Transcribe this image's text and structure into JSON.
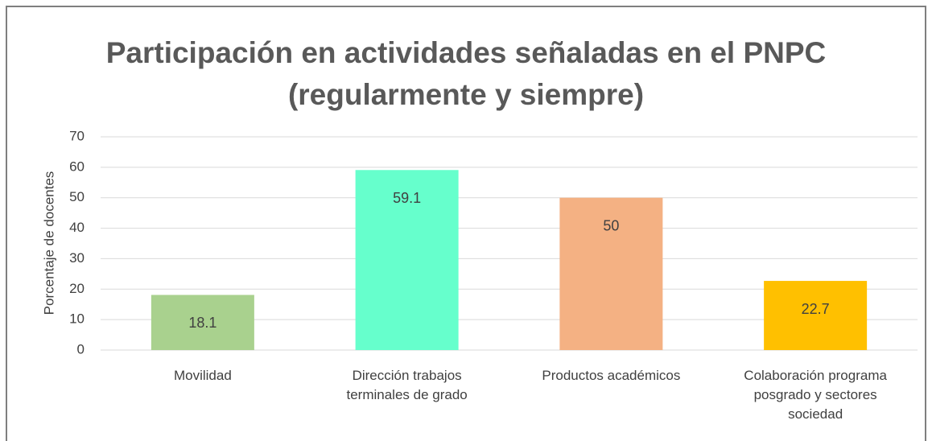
{
  "chart_data": {
    "type": "bar",
    "title": "Participación en actividades señaladas en el PNPC\n(regularmente y siempre)",
    "y_label": "Porcentaje de docentes",
    "categories": [
      "Movilidad",
      "Dirección trabajos\nterminales de grado",
      "Productos académicos",
      "Colaboración programa\nposgrado y sectores\nsociedad"
    ],
    "values": [
      18.1,
      59.1,
      50,
      22.7
    ],
    "colors": [
      "#a9d18e",
      "#66ffcc",
      "#f4b183",
      "#ffc000"
    ],
    "ylim": [
      0,
      70
    ],
    "yticks": [
      0,
      10,
      20,
      30,
      40,
      50,
      60,
      70
    ],
    "grid": true
  }
}
